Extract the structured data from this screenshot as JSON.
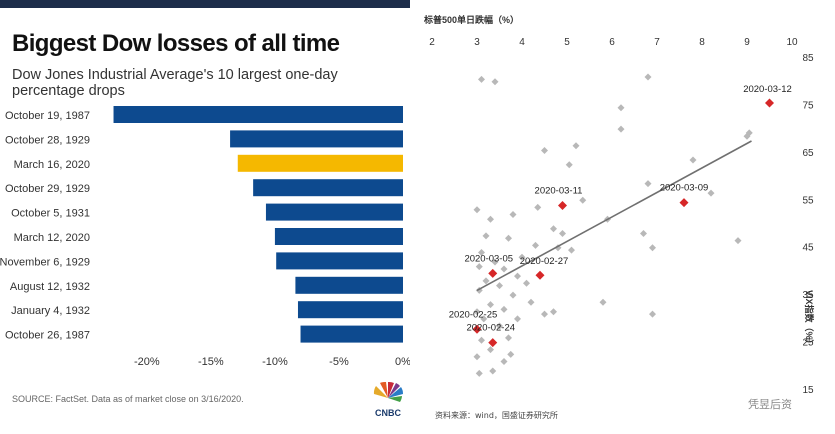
{
  "left": {
    "title": "Biggest Dow losses of all time",
    "subtitle": "Dow Jones Industrial Average's 10 largest one-day percentage drops",
    "source": "SOURCE: FactSet. Data as of market close on 3/16/2020.",
    "logo_text": "CNBC"
  },
  "right": {
    "top_axis_title": "标普500单日跌幅（%）",
    "right_axis_title": "VIX指数（%）",
    "footer_note": "资料来源：wind，国盛证券研究所",
    "watermark": "凭昱后资"
  },
  "chart_data": [
    {
      "type": "bar",
      "orientation": "horizontal",
      "categories": [
        "October 19, 1987",
        "October 28, 1929",
        "March 16, 2020",
        "October 29, 1929",
        "October 5, 1931",
        "March 12, 2020",
        "November 6, 1929",
        "August 12, 1932",
        "January 4, 1932",
        "October 26, 1987"
      ],
      "values": [
        -22.6,
        -13.5,
        -12.9,
        -11.7,
        -10.7,
        -10.0,
        -9.9,
        -8.4,
        -8.2,
        -8.0
      ],
      "highlight_index": 2,
      "colors": {
        "bar": "#0d4a8f",
        "highlight": "#f5b800"
      },
      "xticks": [
        "-20%",
        "-15%",
        "-10%",
        "-5%",
        "0%"
      ],
      "xtick_values": [
        -20,
        -15,
        -10,
        -5,
        0
      ],
      "xlim": [
        -23.5,
        0
      ]
    },
    {
      "type": "scatter",
      "x_axis_position": "top",
      "y_axis_position": "right",
      "xlim": [
        2,
        10
      ],
      "ylim": [
        15,
        85
      ],
      "xticks": [
        2,
        3,
        4,
        5,
        6,
        7,
        8,
        9,
        10
      ],
      "yticks": [
        15,
        25,
        35,
        45,
        55,
        65,
        75,
        85
      ],
      "colors": {
        "points": "#b8b8b8",
        "highlight": "#d62728",
        "trend": "#707070"
      },
      "trend_line": {
        "x": [
          3.0,
          9.1
        ],
        "y": [
          36,
          67.5
        ]
      },
      "highlights": [
        {
          "label": "2020-03-12",
          "x": 9.5,
          "y": 75.5
        },
        {
          "label": "2020-03-09",
          "x": 7.6,
          "y": 54.5
        },
        {
          "label": "2020-03-11",
          "x": 4.9,
          "y": 53.9
        },
        {
          "label": "2020-03-05",
          "x": 3.35,
          "y": 39.6
        },
        {
          "label": "2020-02-27",
          "x": 4.4,
          "y": 39.2
        },
        {
          "label": "2020-02-25",
          "x": 3.0,
          "y": 27.8
        },
        {
          "label": "2020-02-24",
          "x": 3.35,
          "y": 25.0
        }
      ],
      "points": [
        [
          3.1,
          80.5
        ],
        [
          3.4,
          80
        ],
        [
          6.8,
          81
        ],
        [
          6.2,
          74.5
        ],
        [
          6.2,
          70
        ],
        [
          5.2,
          66.5
        ],
        [
          4.5,
          65.5
        ],
        [
          5.05,
          62.5
        ],
        [
          9.0,
          68.5
        ],
        [
          9.05,
          69.2
        ],
        [
          7.8,
          63.5
        ],
        [
          6.8,
          58.5
        ],
        [
          8.2,
          56.5
        ],
        [
          5.35,
          55
        ],
        [
          4.35,
          53.5
        ],
        [
          3.0,
          53
        ],
        [
          3.3,
          51
        ],
        [
          3.8,
          52
        ],
        [
          5.9,
          51
        ],
        [
          4.7,
          49
        ],
        [
          4.9,
          48
        ],
        [
          3.7,
          47
        ],
        [
          3.2,
          47.5
        ],
        [
          4.3,
          45.5
        ],
        [
          4.8,
          45
        ],
        [
          5.1,
          44.5
        ],
        [
          6.7,
          48
        ],
        [
          6.9,
          45
        ],
        [
          8.8,
          46.5
        ],
        [
          3.1,
          44
        ],
        [
          3.4,
          42
        ],
        [
          4.0,
          43
        ],
        [
          3.05,
          41
        ],
        [
          3.6,
          40.5
        ],
        [
          3.9,
          39
        ],
        [
          3.2,
          38
        ],
        [
          3.5,
          37
        ],
        [
          4.1,
          37.5
        ],
        [
          3.05,
          36
        ],
        [
          3.8,
          35
        ],
        [
          4.2,
          33.5
        ],
        [
          3.3,
          33
        ],
        [
          3.6,
          32
        ],
        [
          3.0,
          31.5
        ],
        [
          4.5,
          31
        ],
        [
          4.7,
          31.5
        ],
        [
          5.8,
          33.5
        ],
        [
          6.9,
          31
        ],
        [
          3.15,
          30
        ],
        [
          3.9,
          30
        ],
        [
          3.5,
          28.5
        ],
        [
          3.1,
          25.5
        ],
        [
          3.7,
          26
        ],
        [
          3.3,
          23.5
        ],
        [
          3.0,
          22
        ],
        [
          3.6,
          21
        ],
        [
          3.35,
          19
        ],
        [
          3.05,
          18.5
        ],
        [
          3.75,
          22.5
        ]
      ]
    }
  ]
}
